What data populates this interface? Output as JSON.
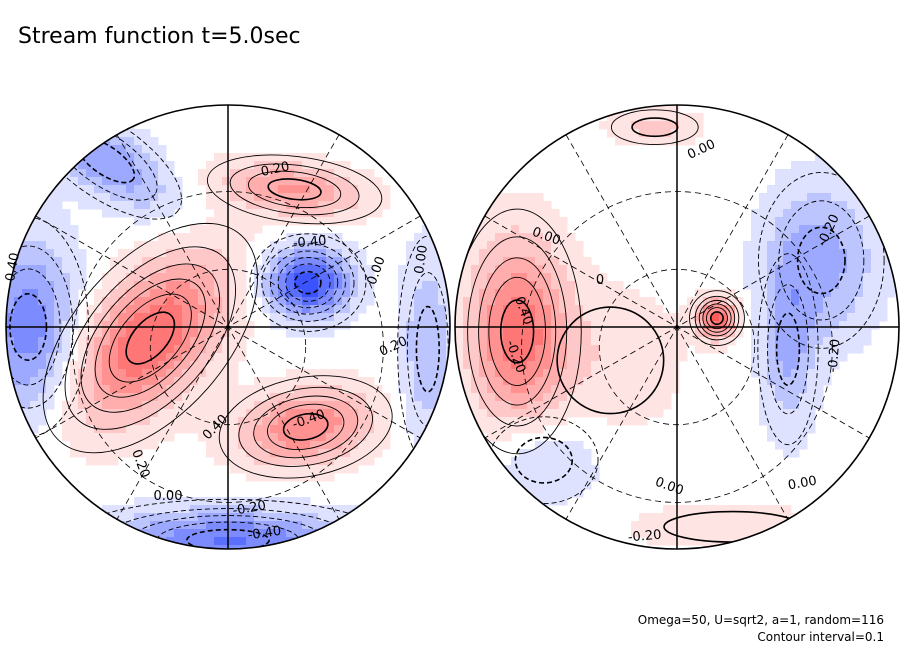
{
  "chart_data": {
    "type": "contour",
    "title": "Stream function t=5.0sec",
    "variable": "Stream function",
    "time_label": "t=5.0sec",
    "projection": "orthographic, two hemispheres",
    "contour_interval": 0.1,
    "colors": {
      "positive": "#ff5a5a",
      "negative": "#3a52ff",
      "zero": "#ffffff"
    },
    "hemispheres": [
      {
        "name": "left",
        "features": [
          {
            "kind": "low",
            "peak": -0.6,
            "label": "-0.40"
          },
          {
            "kind": "high",
            "peak": 0.5,
            "label": "0.40"
          },
          {
            "kind": "high",
            "peak": 0.45,
            "label": "0.40"
          },
          {
            "kind": "high",
            "peak": 0.35,
            "label": "0.20"
          },
          {
            "kind": "low",
            "peak": -0.45,
            "label": "-0.40"
          }
        ],
        "contour_labels": [
          "0.20",
          "-0.40",
          "0.00",
          "0.00",
          "0.20",
          "-0.40",
          "0.40",
          "0.20",
          "0.00",
          "-0.20",
          "-0.40",
          "-0.40"
        ]
      },
      {
        "name": "right",
        "features": [
          {
            "kind": "high",
            "peak": 0.5,
            "label": "0.40"
          },
          {
            "kind": "high",
            "peak": 0.4,
            "label": "0"
          },
          {
            "kind": "low",
            "peak": -0.3,
            "label": "-0.20"
          }
        ],
        "contour_labels": [
          "0.00",
          "0.00",
          "-0.20",
          "0",
          "0.40",
          "-0.20",
          "-0.20",
          "0.00",
          "0.00",
          "-0.20"
        ]
      }
    ]
  },
  "footer": {
    "params": "Omega=50, U=sqrt2, a=1, random=116",
    "interval": "Contour interval=0.1"
  }
}
